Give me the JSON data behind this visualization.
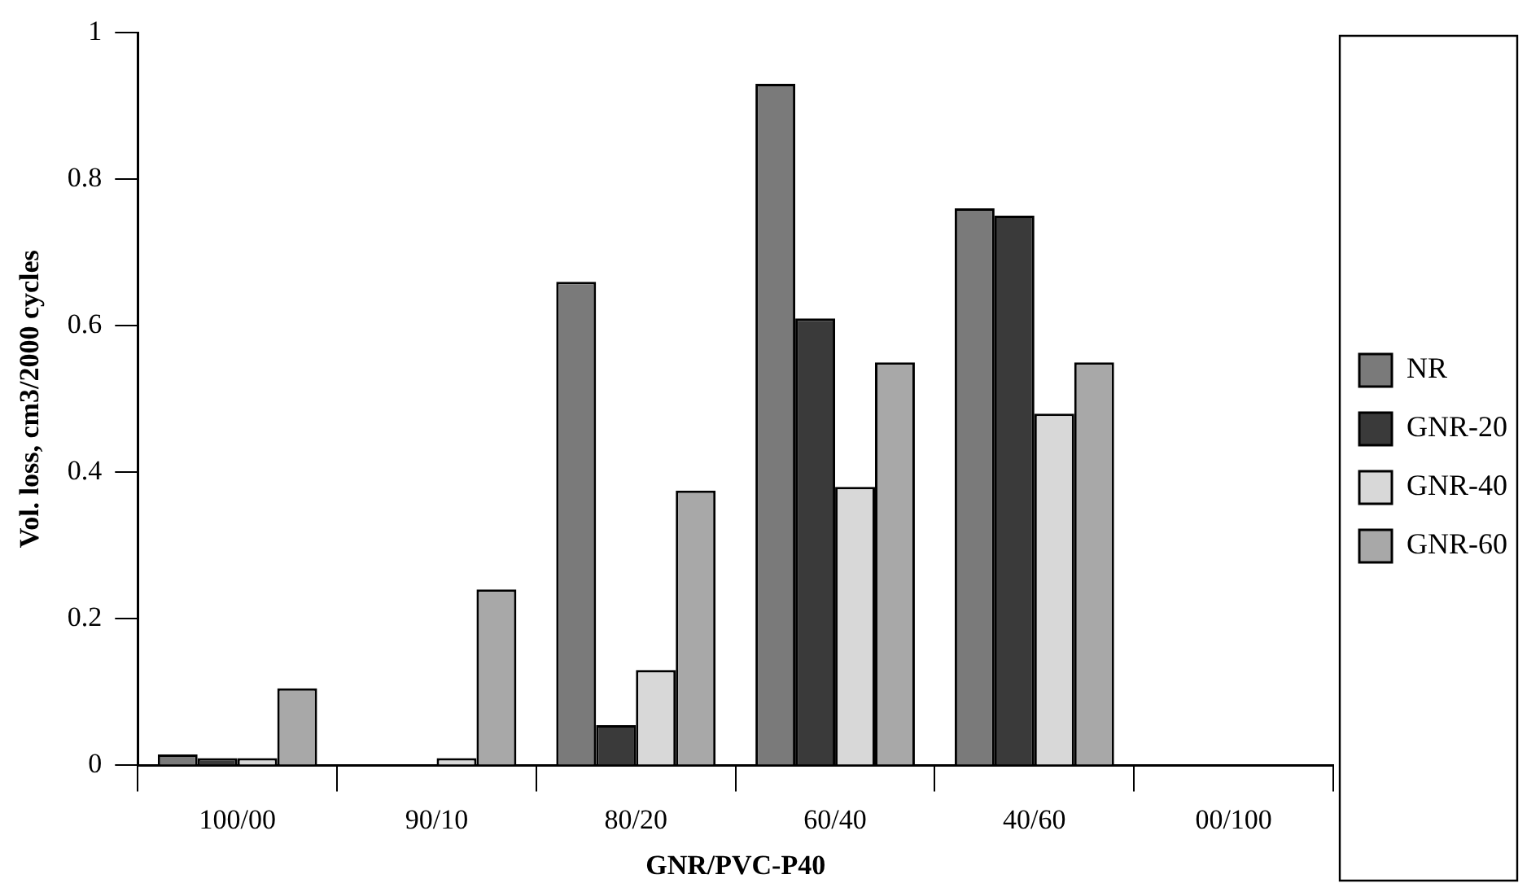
{
  "chart_data": {
    "type": "bar",
    "xlabel": "GNR/PVC-P40",
    "ylabel": "Vol. loss, cm3/2000 cycles",
    "categories": [
      "100/00",
      "90/10",
      "80/20",
      "60/40",
      "40/60",
      "00/100"
    ],
    "series": [
      {
        "name": "NR",
        "color": "#7a7a7a",
        "values": [
          0.015,
          null,
          0.66,
          0.93,
          0.76,
          null
        ]
      },
      {
        "name": "GNR-20",
        "color": "#3a3a3a",
        "values": [
          0.01,
          null,
          0.055,
          0.61,
          0.75,
          null
        ]
      },
      {
        "name": "GNR-40",
        "color": "#d8d8d8",
        "values": [
          0.01,
          0.01,
          0.13,
          0.38,
          0.48,
          null
        ]
      },
      {
        "name": "GNR-60",
        "color": "#a8a8a8",
        "values": [
          0.105,
          0.24,
          0.375,
          0.55,
          0.55,
          null
        ]
      }
    ],
    "ylim": [
      0,
      1
    ],
    "yticks": [
      0,
      0.2,
      0.4,
      0.6,
      0.8,
      1
    ],
    "grid": false,
    "legend": "right"
  }
}
